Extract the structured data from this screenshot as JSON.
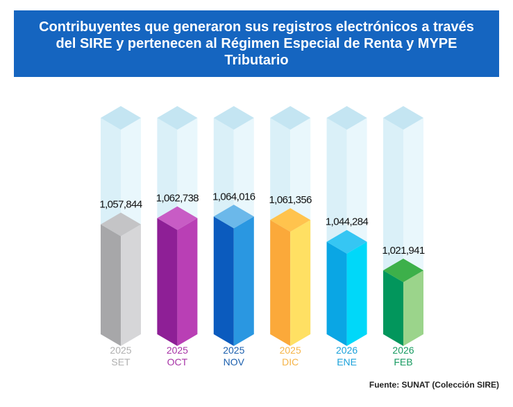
{
  "title": "Contribuyentes que generaron sus registros electrónicos a través del SIRE y pertenecen al Régimen Especial de Renta y MYPE Tributario",
  "source": "Fuente: SUNAT (Colección SIRE)",
  "chart_data": {
    "type": "bar",
    "title": "Contribuyentes que generaron sus registros electrónicos a través del SIRE y pertenecen al Régimen Especial de Renta y MYPE Tributario",
    "xlabel": "",
    "ylabel": "",
    "categories": [
      {
        "year": "2025",
        "month": "SET"
      },
      {
        "year": "2025",
        "month": "OCT"
      },
      {
        "year": "2025",
        "month": "NOV"
      },
      {
        "year": "2025",
        "month": "DIC"
      },
      {
        "year": "2026",
        "month": "ENE"
      },
      {
        "year": "2026",
        "month": "FEB"
      }
    ],
    "values": [
      1057844,
      1062738,
      1064016,
      1061356,
      1044284,
      1021941
    ],
    "value_labels": [
      "1,057,844",
      "1,062,738",
      "1,064,016",
      "1,061,356",
      "1,044,284",
      "1,021,941"
    ],
    "colors": [
      {
        "front": "#a7a7a9",
        "side": "#d6d6d8",
        "top": "#c4c4c6",
        "label": "#b0b0b0"
      },
      {
        "front": "#8e1f96",
        "side": "#b93fb5",
        "top": "#c85cc5",
        "label": "#a733a6"
      },
      {
        "front": "#0b5bbe",
        "side": "#2a97e1",
        "top": "#6bb8ea",
        "label": "#1b5fae"
      },
      {
        "front": "#fba93a",
        "side": "#ffe063",
        "top": "#ffc34d",
        "label": "#f6b447"
      },
      {
        "front": "#0aa6e4",
        "side": "#00d8f9",
        "top": "#36c6f3",
        "label": "#1aa1da"
      },
      {
        "front": "#02965c",
        "side": "#9bd48b",
        "top": "#3db04a",
        "label": "#169a60"
      }
    ],
    "ghost_colors": {
      "front": "#daf0f8",
      "side": "#e9f7fc",
      "top": "#c4e5f2"
    },
    "grid": false,
    "legend": "none"
  }
}
